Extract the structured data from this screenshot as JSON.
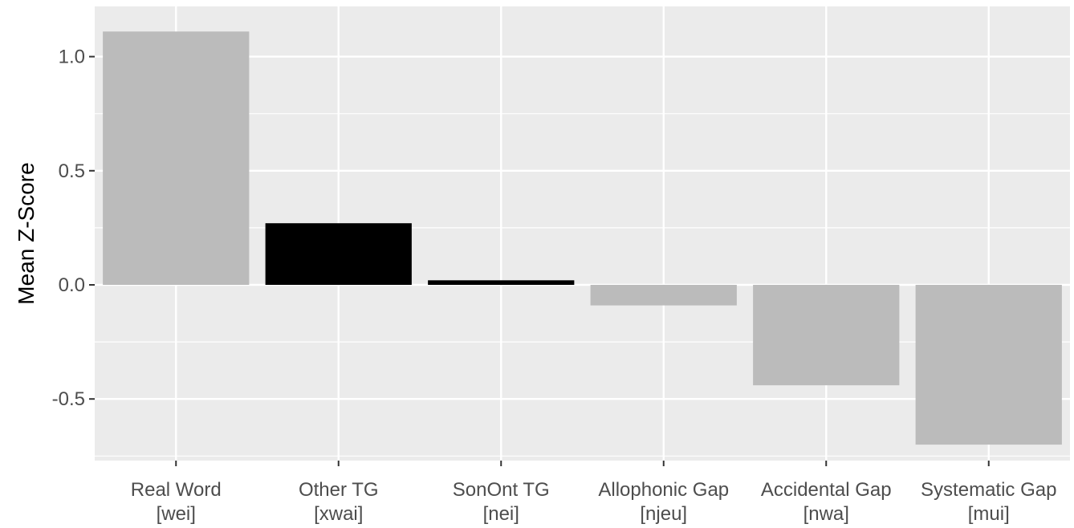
{
  "chart_data": {
    "type": "bar",
    "title": "",
    "xlabel": "",
    "ylabel": "Mean Z-Score",
    "categories": [
      {
        "name": "Real Word",
        "sub": "[wei]"
      },
      {
        "name": "Other TG",
        "sub": "[xwai]"
      },
      {
        "name": "SonOnt TG",
        "sub": "[nei]"
      },
      {
        "name": "Allophonic Gap",
        "sub": "[njeu]"
      },
      {
        "name": "Accidental Gap",
        "sub": "[nwa]"
      },
      {
        "name": "Systematic Gap",
        "sub": "[mui]"
      }
    ],
    "values": [
      1.11,
      0.27,
      0.02,
      -0.09,
      -0.44,
      -0.7
    ],
    "bar_colors": [
      "#bbbbbb",
      "#000000",
      "#000000",
      "#bbbbbb",
      "#bbbbbb",
      "#bbbbbb"
    ],
    "ylim": [
      -0.77,
      1.22
    ],
    "yticks": [
      1.0,
      0.5,
      0.0,
      -0.5
    ],
    "ytick_labels": [
      "1.0",
      "0.5",
      "0.0",
      "-0.5"
    ],
    "grid": true,
    "panel_color": "#ebebeb",
    "grid_color": "#ffffff"
  }
}
